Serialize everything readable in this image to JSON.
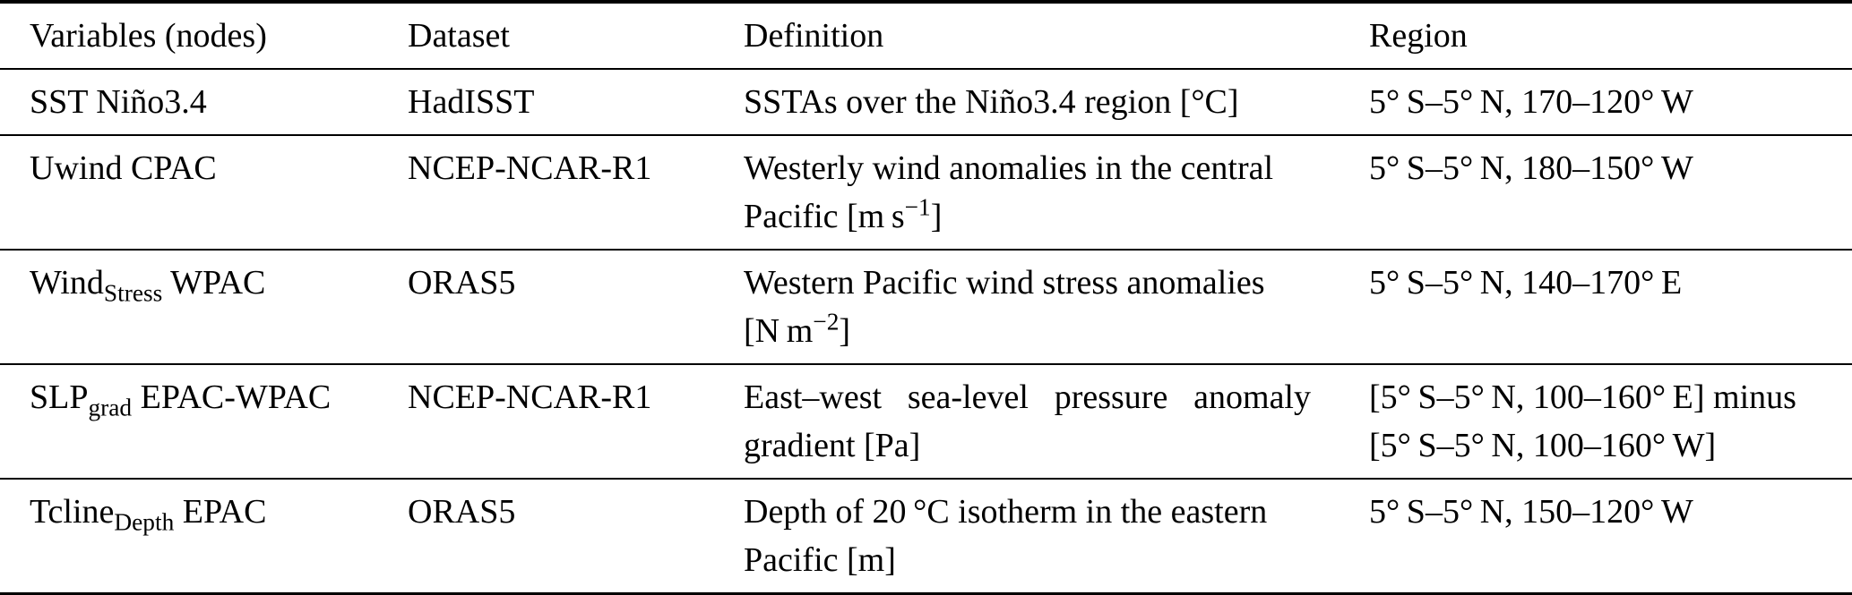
{
  "colors": {
    "ink": "#000000",
    "paper": "#ffffff"
  },
  "table": {
    "header": {
      "variables": "Variables (nodes)",
      "dataset": "Dataset",
      "definition": "Definition",
      "region": "Region"
    },
    "rows": [
      {
        "variable": {
          "base": "SST Niño3.4",
          "sub": "",
          "rest": ""
        },
        "dataset": "HadISST",
        "definition": {
          "line1": "SSTAs over the Niño3.4 region [°C]",
          "line2_pre": "",
          "line2_sup": "",
          "line2_post": ""
        },
        "region": {
          "line1": "5° S–5° N, 170–120° W",
          "line2": ""
        }
      },
      {
        "variable": {
          "base": "Uwind CPAC",
          "sub": "",
          "rest": ""
        },
        "dataset": "NCEP-NCAR-R1",
        "definition": {
          "line1": "Westerly wind anomalies in the central",
          "line2_pre": "Pacific [m s",
          "line2_sup": "−1",
          "line2_post": "]"
        },
        "region": {
          "line1": "5° S–5° N, 180–150° W",
          "line2": ""
        }
      },
      {
        "variable": {
          "base": "Wind",
          "sub": "Stress",
          "rest": " WPAC"
        },
        "dataset": "ORAS5",
        "definition": {
          "line1": "Western Pacific wind stress anomalies",
          "line2_pre": "[N m",
          "line2_sup": "−2",
          "line2_post": "]"
        },
        "region": {
          "line1": "5° S–5° N, 140–170° E",
          "line2": ""
        }
      },
      {
        "variable": {
          "base": "SLP",
          "sub": "grad",
          "rest": " EPAC-WPAC"
        },
        "dataset": "NCEP-NCAR-R1",
        "definition": {
          "line1": "East–west sea-level pressure anomaly",
          "line2_pre": "gradient [Pa]",
          "line2_sup": "",
          "line2_post": ""
        },
        "region": {
          "line1": "[5° S–5° N, 100–160° E] minus",
          "line2": "[5° S–5° N, 100–160° W]"
        }
      },
      {
        "variable": {
          "base": "Tcline",
          "sub": "Depth",
          "rest": " EPAC"
        },
        "dataset": "ORAS5",
        "definition": {
          "line1": "Depth of 20 °C isotherm in the eastern",
          "line2_pre": "Pacific [m]",
          "line2_sup": "",
          "line2_post": ""
        },
        "region": {
          "line1": "5° S–5° N, 150–120° W",
          "line2": ""
        }
      }
    ]
  }
}
